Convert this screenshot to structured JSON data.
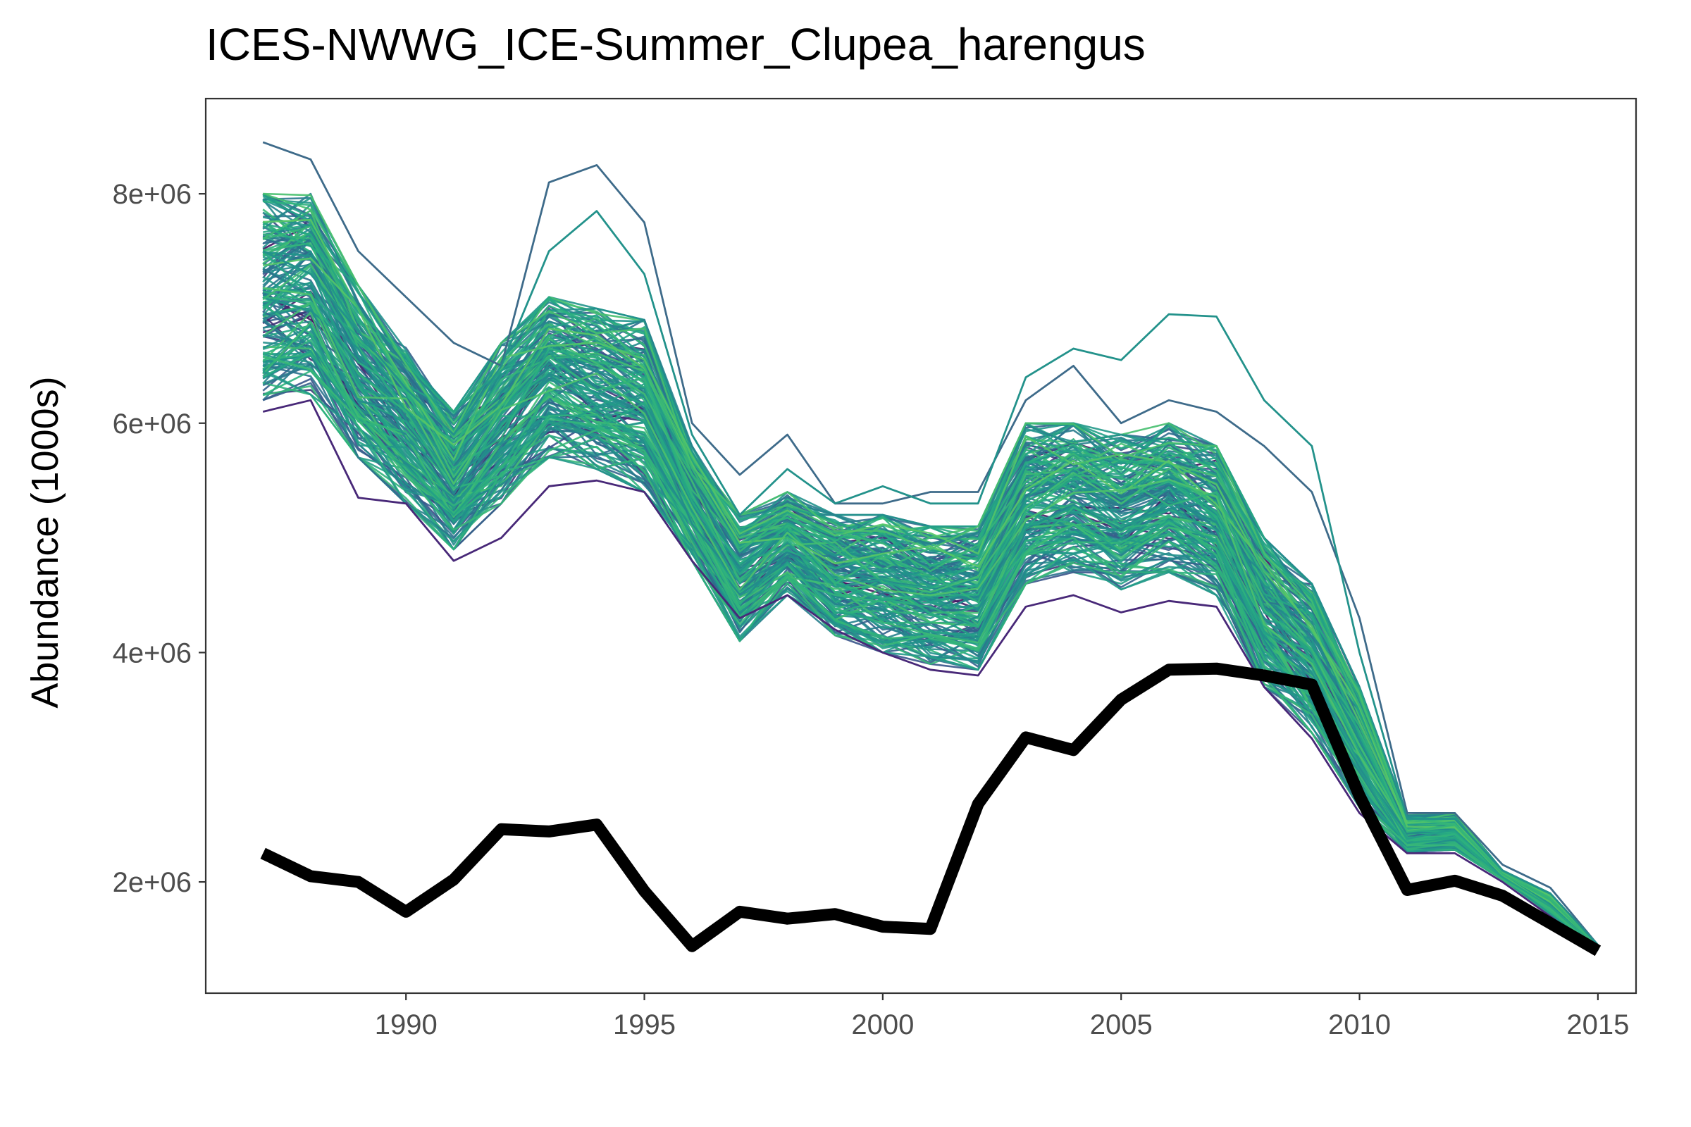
{
  "chart_data": {
    "type": "line",
    "title": "ICES-NWWG_ICE-Summer_Clupea_harengus",
    "xlabel": "",
    "ylabel": "Abundance (1000s)",
    "x": [
      1987,
      1988,
      1989,
      1990,
      1991,
      1992,
      1993,
      1994,
      1995,
      1996,
      1997,
      1998,
      1999,
      2000,
      2001,
      2002,
      2003,
      2004,
      2005,
      2006,
      2007,
      2008,
      2009,
      2010,
      2011,
      2012,
      2013,
      2014,
      2015
    ],
    "x_ticks": [
      1990,
      1995,
      2000,
      2005,
      2010,
      2015
    ],
    "x_tick_labels": [
      "1990",
      "1995",
      "2000",
      "2005",
      "2010",
      "2015"
    ],
    "xlim": [
      1985.8,
      2015.8
    ],
    "y_ticks": [
      2000000,
      4000000,
      6000000,
      8000000
    ],
    "y_tick_labels": [
      "2e+06",
      "4e+06",
      "6e+06",
      "8e+06"
    ],
    "ylim": [
      1030000,
      8830000
    ],
    "grid": false,
    "legend": "none",
    "series": [
      {
        "role": "observed",
        "color": "#000000",
        "values": [
          2250000,
          2050000,
          2000000,
          1740000,
          2020000,
          2460000,
          2440000,
          2500000,
          1920000,
          1440000,
          1740000,
          1680000,
          1720000,
          1610000,
          1590000,
          2680000,
          3260000,
          3150000,
          3590000,
          3850000,
          3860000,
          3800000,
          3720000,
          2750000,
          1930000,
          2010000,
          1880000,
          1640000,
          1400000
        ]
      },
      {
        "role": "ensemble-envelope-upper",
        "values": [
          8000000,
          8000000,
          7200000,
          6700000,
          6100000,
          6700000,
          7100000,
          7000000,
          6900000,
          5800000,
          5200000,
          5400000,
          5200000,
          5200000,
          5100000,
          5100000,
          6000000,
          6000000,
          5900000,
          6000000,
          5800000,
          5000000,
          4600000,
          3700000,
          2580000,
          2600000,
          2100000,
          1900000,
          1450000
        ]
      },
      {
        "role": "ensemble-envelope-lower",
        "values": [
          6200000,
          6250000,
          5700000,
          5300000,
          4900000,
          5300000,
          5700000,
          5600000,
          5400000,
          4800000,
          4100000,
          4500000,
          4150000,
          4000000,
          3900000,
          3850000,
          4600000,
          4700000,
          4550000,
          4700000,
          4500000,
          3700000,
          3300000,
          2650000,
          2260000,
          2280000,
          2020000,
          1720000,
          1400000
        ]
      },
      {
        "role": "ensemble-outlier",
        "color": "#3e6b8a",
        "values": [
          8450000,
          8300000,
          7500000,
          7100000,
          6700000,
          6500000,
          8100000,
          8250000,
          7750000,
          6000000,
          5550000,
          5900000,
          5300000,
          5300000,
          5400000,
          5400000,
          6200000,
          6500000,
          6000000,
          6200000,
          6100000,
          5800000,
          5400000,
          4300000,
          2600000,
          2600000,
          2150000,
          1950000,
          1450000
        ]
      },
      {
        "role": "ensemble-outlier",
        "color": "#23928b",
        "values": [
          7500000,
          7300000,
          6800000,
          6300000,
          5900000,
          6500000,
          7500000,
          7850000,
          7300000,
          5900000,
          5200000,
          5600000,
          5300000,
          5450000,
          5300000,
          5300000,
          6400000,
          6650000,
          6550000,
          6950000,
          6930000,
          6200000,
          5800000,
          4000000,
          2550000,
          2550000,
          2100000,
          1900000,
          1450000
        ]
      },
      {
        "role": "ensemble-outlier",
        "color": "#482878",
        "values": [
          6100000,
          6200000,
          5350000,
          5300000,
          4800000,
          5000000,
          5450000,
          5500000,
          5400000,
          4800000,
          4300000,
          4500000,
          4200000,
          4000000,
          3850000,
          3800000,
          4400000,
          4500000,
          4350000,
          4450000,
          4400000,
          3700000,
          3250000,
          2600000,
          2250000,
          2250000,
          2000000,
          1700000,
          1400000
        ]
      }
    ]
  }
}
